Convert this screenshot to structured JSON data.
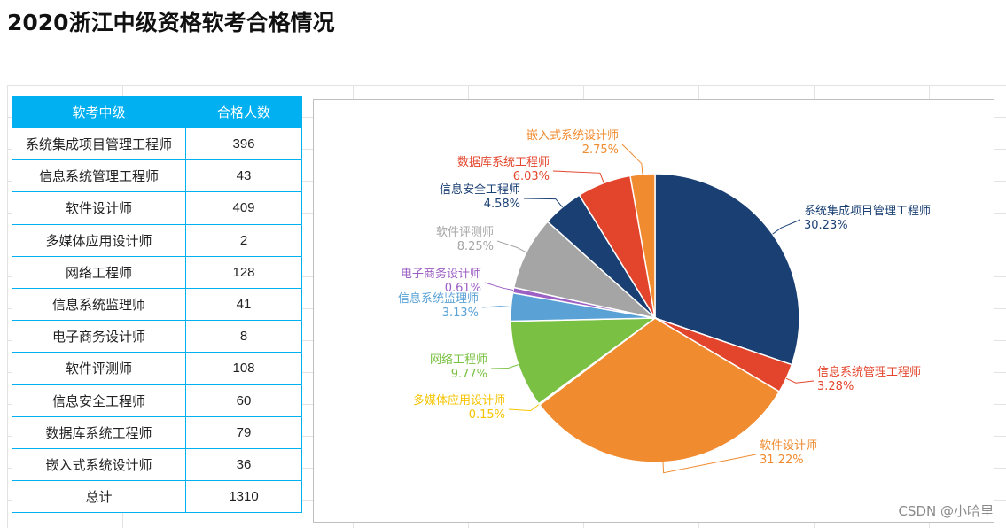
{
  "page": {
    "title": "2020浙江中级资格软考合格情况",
    "watermark": "CSDN @小哈里"
  },
  "table": {
    "headers": [
      "软考中级",
      "合格人数"
    ],
    "rows": [
      [
        "系统集成项目管理工程师",
        "396"
      ],
      [
        "信息系统管理工程师",
        "43"
      ],
      [
        "软件设计师",
        "409"
      ],
      [
        "多媒体应用设计师",
        "2"
      ],
      [
        "网络工程师",
        "128"
      ],
      [
        "信息系统监理师",
        "41"
      ],
      [
        "电子商务设计师",
        "8"
      ],
      [
        "软件评测师",
        "108"
      ],
      [
        "信息安全工程师",
        "60"
      ],
      [
        "数据库系统工程师",
        "79"
      ],
      [
        "嵌入式系统设计师",
        "36"
      ],
      [
        "总计",
        "1310"
      ]
    ]
  },
  "chart_data": {
    "type": "pie",
    "title": "",
    "start": "12 o'clock, clockwise",
    "legend": "none (leader-line labels)",
    "slices": [
      {
        "label": "系统集成项目管理工程师",
        "value": 396,
        "percent": "30.23%",
        "color": "#1a3f73"
      },
      {
        "label": "信息系统管理工程师",
        "value": 43,
        "percent": "3.28%",
        "color": "#e3452c"
      },
      {
        "label": "软件设计师",
        "value": 409,
        "percent": "31.22%",
        "color": "#f08b30"
      },
      {
        "label": "多媒体应用设计师",
        "value": 2,
        "percent": "0.15%",
        "color": "#f6c400"
      },
      {
        "label": "网络工程师",
        "value": 128,
        "percent": "9.77%",
        "color": "#7ac143"
      },
      {
        "label": "信息系统监理师",
        "value": 41,
        "percent": "3.13%",
        "color": "#5aa2d6"
      },
      {
        "label": "电子商务设计师",
        "value": 8,
        "percent": "0.61%",
        "color": "#9c5fc4"
      },
      {
        "label": "软件评测师",
        "value": 108,
        "percent": "8.25%",
        "color": "#a5a5a5"
      },
      {
        "label": "信息安全工程师",
        "value": 60,
        "percent": "4.58%",
        "color": "#1a3f73"
      },
      {
        "label": "数据库系统工程师",
        "value": 79,
        "percent": "6.03%",
        "color": "#e3452c"
      },
      {
        "label": "嵌入式系统设计师",
        "value": 36,
        "percent": "2.75%",
        "color": "#f08b30"
      }
    ]
  }
}
